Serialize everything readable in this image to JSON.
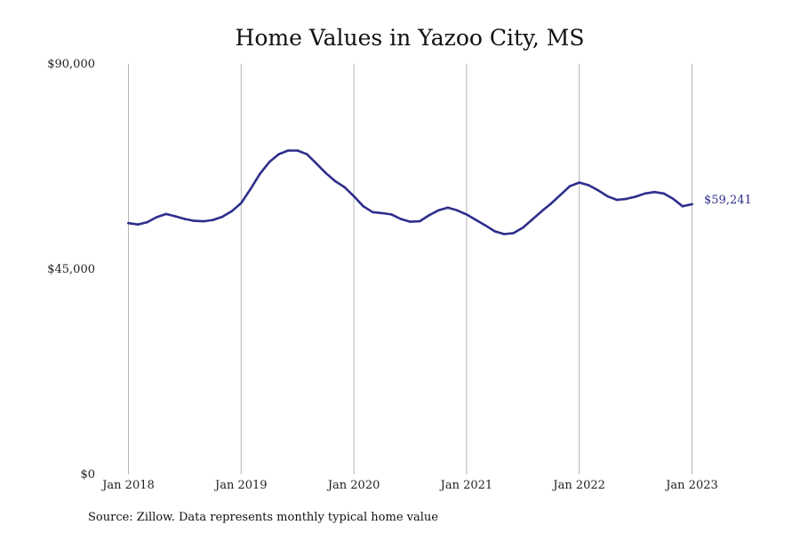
{
  "chart_data": {
    "type": "line",
    "title": "Home Values in Yazoo City, MS",
    "source": "Source: Zillow. Data represents monthly typical home value",
    "line_color": "#2e2e8c",
    "grid": "vertical",
    "ylim": [
      0,
      90000
    ],
    "y_ticks": [
      {
        "value": 0,
        "label": "$0"
      },
      {
        "value": 45000,
        "label": "$45,000"
      },
      {
        "value": 90000,
        "label": "$90,000"
      }
    ],
    "x_ticks": [
      {
        "value": "2018-01",
        "label": "Jan 2018"
      },
      {
        "value": "2019-01",
        "label": "Jan 2019"
      },
      {
        "value": "2020-01",
        "label": "Jan 2020"
      },
      {
        "value": "2021-01",
        "label": "Jan 2021"
      },
      {
        "value": "2022-01",
        "label": "Jan 2022"
      },
      {
        "value": "2023-01",
        "label": "Jan 2023"
      }
    ],
    "end_label": "$59,241",
    "series": [
      {
        "x": [
          "2018-01",
          "2018-02",
          "2018-03",
          "2018-04",
          "2018-05",
          "2018-06",
          "2018-07",
          "2018-08",
          "2018-09",
          "2018-10",
          "2018-11",
          "2018-12",
          "2019-01",
          "2019-02",
          "2019-03",
          "2019-04",
          "2019-05",
          "2019-06",
          "2019-07",
          "2019-08",
          "2019-09",
          "2019-10",
          "2019-11",
          "2019-12",
          "2020-01",
          "2020-02",
          "2020-03",
          "2020-04",
          "2020-05",
          "2020-06",
          "2020-07",
          "2020-08",
          "2020-09",
          "2020-10",
          "2020-11",
          "2020-12",
          "2021-01",
          "2021-02",
          "2021-03",
          "2021-04",
          "2021-05",
          "2021-06",
          "2021-07",
          "2021-08",
          "2021-09",
          "2021-10",
          "2021-11",
          "2021-12",
          "2022-01",
          "2022-02",
          "2022-03",
          "2022-04",
          "2022-05",
          "2022-06",
          "2022-07",
          "2022-08",
          "2022-09",
          "2022-10",
          "2022-11",
          "2022-12",
          "2023-01"
        ],
        "values": [
          55100,
          54800,
          55300,
          56400,
          57100,
          56600,
          56000,
          55600,
          55500,
          55800,
          56500,
          57700,
          59500,
          62600,
          65900,
          68500,
          70200,
          71000,
          71000,
          70200,
          68200,
          66100,
          64300,
          63000,
          61000,
          58800,
          57500,
          57300,
          57000,
          56000,
          55400,
          55500,
          56800,
          57900,
          58500,
          57900,
          57000,
          55800,
          54600,
          53300,
          52700,
          52900,
          54100,
          55900,
          57700,
          59400,
          61300,
          63200,
          64000,
          63400,
          62300,
          61000,
          60200,
          60400,
          60900,
          61600,
          61900,
          61600,
          60400,
          58800,
          59241
        ]
      }
    ]
  }
}
